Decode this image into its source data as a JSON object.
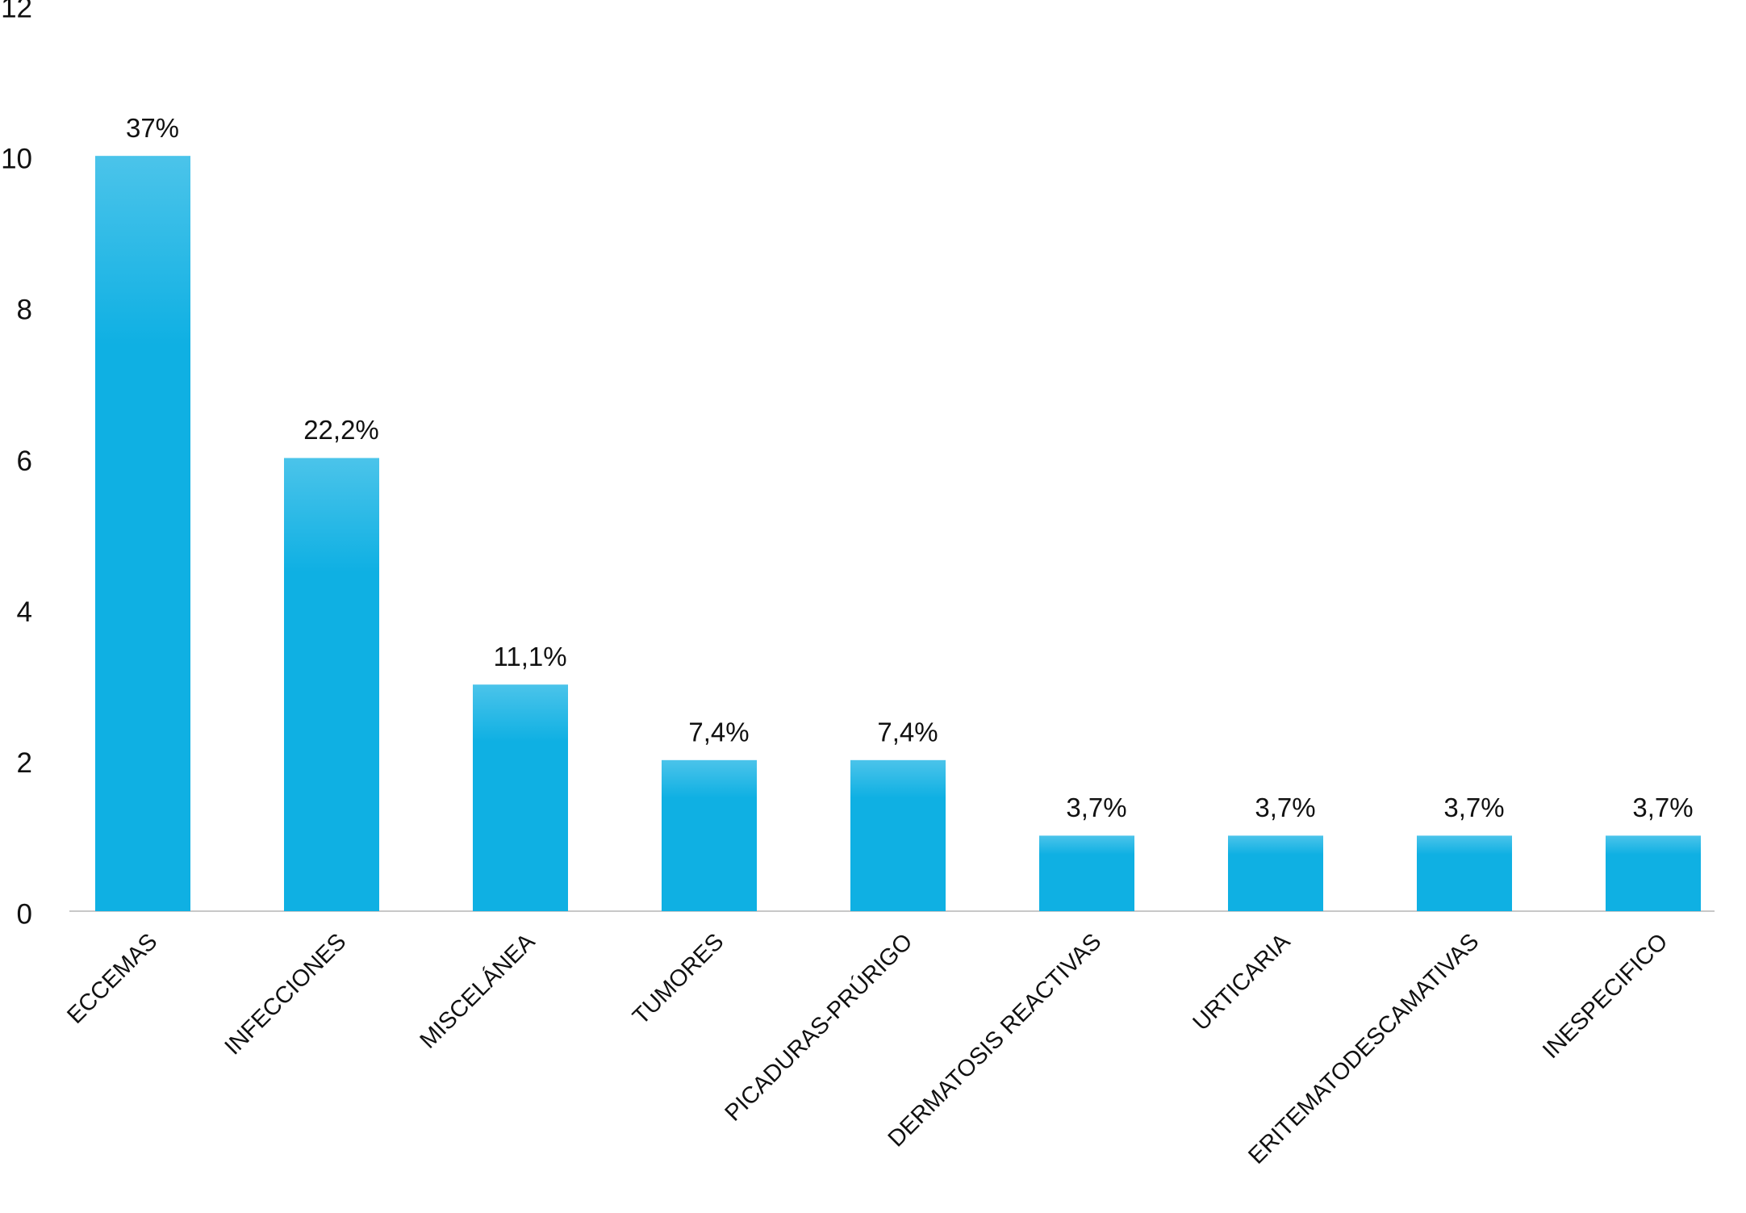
{
  "chart_data": {
    "type": "bar",
    "categories": [
      "ECCEMAS",
      "INFECCIONES",
      "MISCELÁNEA",
      "TUMORES",
      "PICADURAS-PRÚRIGO",
      "DERMATOSIS REACTIVAS",
      "URTICARIA",
      "ERITEMATODESCAMATIVAS",
      "INESPECIFICO"
    ],
    "values": [
      10,
      6,
      3,
      2,
      2,
      1,
      1,
      1,
      1
    ],
    "value_labels": [
      "37%",
      "22,2%",
      "11,1%",
      "7,4%",
      "7,4%",
      "3,7%",
      "3,7%",
      "3,7%",
      "3,7%"
    ],
    "color": "#0fb0e3",
    "ylim": [
      0,
      12
    ],
    "yticks": [
      0,
      2,
      4,
      6,
      8,
      10,
      12
    ],
    "grid": false
  }
}
